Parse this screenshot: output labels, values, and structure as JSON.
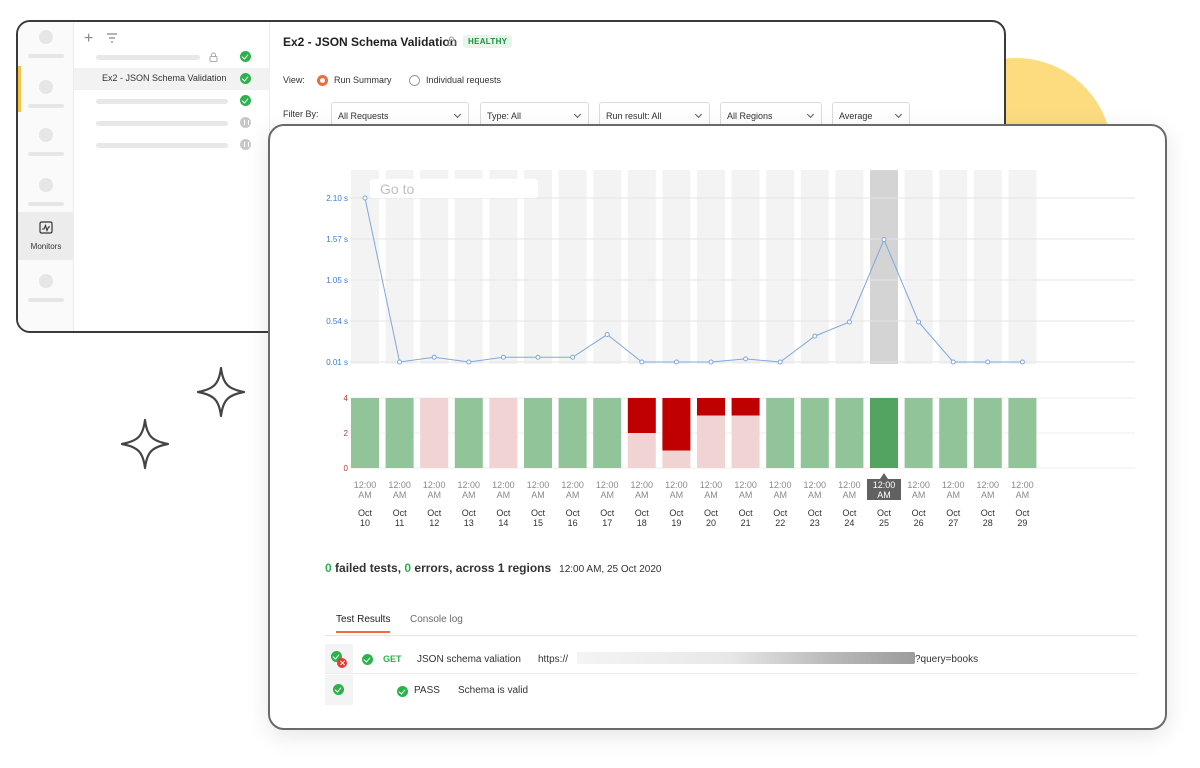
{
  "monitor": {
    "title": "Ex2 - JSON Schema Validation",
    "status_badge": "HEALTHY"
  },
  "sidebar": {
    "monitors_label": "Monitors",
    "selected_item": "Ex2 - JSON Schema Validation"
  },
  "view": {
    "label": "View:",
    "options": [
      "Run Summary",
      "Individual requests"
    ],
    "selected": "Run Summary"
  },
  "filters": {
    "label": "Filter By:",
    "requests": "All Requests",
    "type": "Type: All",
    "run_result": "Run result: All",
    "regions": "All Regions",
    "aggregate": "Average"
  },
  "chart_data": [
    {
      "type": "line",
      "series": [
        {
          "values": [
            2.1,
            0.01,
            0.07,
            0.01,
            0.07,
            0.07,
            0.07,
            0.36,
            0.01,
            0.01,
            0.01,
            0.05,
            0.01,
            0.34,
            0.52,
            1.57,
            0.52,
            0.01,
            0.01,
            0.01
          ]
        }
      ],
      "y_ticks": [
        "2.10 s",
        "1.57 s",
        "1.05 s",
        "0.54 s",
        "0.01 s"
      ],
      "ylim": [
        0.01,
        2.1
      ],
      "highlight_index": 15,
      "goto_placeholder": "Go to"
    },
    {
      "type": "bar",
      "stacked": true,
      "categories": [
        "Oct 10",
        "Oct 11",
        "Oct 12",
        "Oct 13",
        "Oct 14",
        "Oct 15",
        "Oct 16",
        "Oct 17",
        "Oct 18",
        "Oct 19",
        "Oct 20",
        "Oct 21",
        "Oct 22",
        "Oct 23",
        "Oct 24",
        "Oct 25",
        "Oct 26",
        "Oct 27",
        "Oct 28",
        "Oct 29"
      ],
      "time_label": [
        "12:00",
        "AM"
      ],
      "date_label_parts": [
        "Oct",
        [
          "10",
          "11",
          "12",
          "13",
          "14",
          "15",
          "16",
          "17",
          "18",
          "19",
          "20",
          "21",
          "22",
          "23",
          "24",
          "25",
          "26",
          "27",
          "28",
          "29"
        ]
      ],
      "series": [
        {
          "color": "#92c49a",
          "values": [
            4,
            4,
            0,
            4,
            0,
            4,
            4,
            4,
            0,
            0,
            0,
            0,
            4,
            4,
            4,
            4,
            4,
            4,
            4,
            4
          ]
        },
        {
          "color": "#f2d3d3",
          "values": [
            0,
            0,
            4,
            0,
            4,
            0,
            0,
            0,
            2,
            1,
            3,
            3,
            0,
            0,
            0,
            0,
            0,
            0,
            0,
            0
          ]
        },
        {
          "color": "#c00000",
          "values": [
            0,
            0,
            0,
            0,
            0,
            0,
            0,
            0,
            2,
            3,
            1,
            1,
            0,
            0,
            0,
            0,
            0,
            0,
            0,
            0
          ]
        }
      ],
      "y_ticks": [
        "4",
        "2",
        "0"
      ],
      "ylim": [
        0,
        4
      ],
      "highlight_index": 15,
      "highlight_color": "#52a460"
    }
  ],
  "summary": {
    "failed_count": "0",
    "failed_label": " failed tests, ",
    "errors_count": "0",
    "errors_label": " errors, across 1 regions",
    "timestamp": "12:00 AM, 25 Oct 2020"
  },
  "tabs": [
    "Test Results",
    "Console log"
  ],
  "results": {
    "request": {
      "method": "GET",
      "name": "JSON schema valiation",
      "url_prefix": "https://",
      "url_suffix": "?query=books"
    },
    "test": {
      "status": "PASS",
      "name": "Schema is valid"
    }
  }
}
